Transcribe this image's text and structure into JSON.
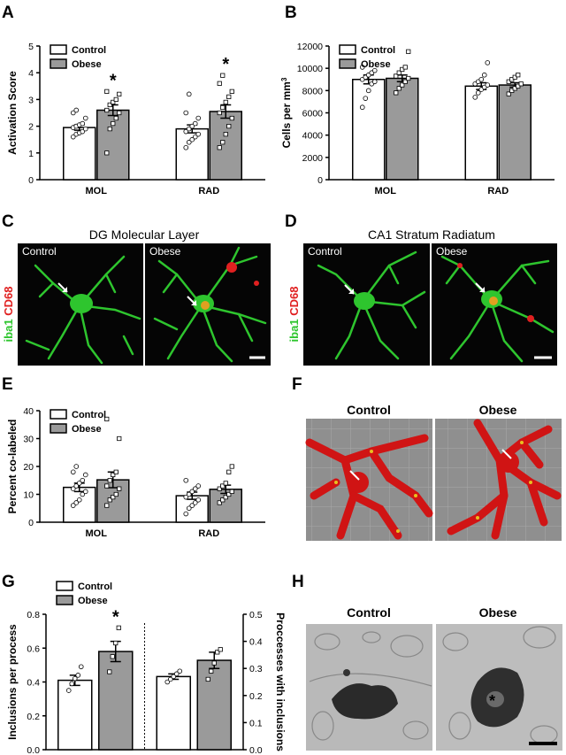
{
  "panels": {
    "A": {
      "letter": "A"
    },
    "B": {
      "letter": "B"
    },
    "C": {
      "letter": "C",
      "title": "DG Molecular Layer",
      "left_label": "Control",
      "right_label": "Obese",
      "stain1": "iba1",
      "stain2": "CD68"
    },
    "D": {
      "letter": "D",
      "title": "CA1 Stratum Radiatum",
      "left_label": "Control",
      "right_label": "Obese",
      "stain1": "iba1",
      "stain2": "CD68"
    },
    "E": {
      "letter": "E"
    },
    "F": {
      "letter": "F",
      "left_label": "Control",
      "right_label": "Obese"
    },
    "G": {
      "letter": "G"
    },
    "H": {
      "letter": "H",
      "left_label": "Control",
      "right_label": "Obese"
    }
  },
  "colors": {
    "control": "#ffffff",
    "obese": "#9a9a9a",
    "green_stain": "#2ec52e",
    "red_stain": "#e02020"
  },
  "chart_data": [
    {
      "id": "A",
      "type": "bar",
      "categories": [
        "MOL",
        "RAD"
      ],
      "ylabel": "Activation Score",
      "ylim": [
        0,
        5
      ],
      "yticks": [
        "0",
        "1",
        "2",
        "3",
        "4",
        "5"
      ],
      "legend": "top-left",
      "series": [
        {
          "name": "Control",
          "values": [
            1.95,
            1.9
          ],
          "errors": [
            0.1,
            0.15
          ],
          "points": [
            [
              1.6,
              1.7,
              1.75,
              1.8,
              1.9,
              1.95,
              2.0,
              2.05,
              2.1,
              2.3,
              2.5,
              2.6
            ],
            [
              1.2,
              1.4,
              1.5,
              1.6,
              1.7,
              1.8,
              1.9,
              2.0,
              2.1,
              2.3,
              2.5,
              3.2
            ]
          ]
        },
        {
          "name": "Obese",
          "values": [
            2.6,
            2.55
          ],
          "errors": [
            0.2,
            0.25
          ],
          "points": [
            [
              1.0,
              1.9,
              2.1,
              2.3,
              2.5,
              2.6,
              2.8,
              2.9,
              3.0,
              3.2,
              3.3
            ],
            [
              1.2,
              1.4,
              1.7,
              2.0,
              2.3,
              2.5,
              2.7,
              2.9,
              3.1,
              3.3,
              3.6,
              3.9
            ]
          ]
        }
      ],
      "sig": [
        {
          "category": "MOL",
          "text": "*"
        },
        {
          "category": "RAD",
          "text": "*"
        }
      ]
    },
    {
      "id": "B",
      "type": "bar",
      "categories": [
        "MOL",
        "RAD"
      ],
      "ylabel": "Cells per mm",
      "ylabel_sup": "3",
      "ylim": [
        0,
        12000
      ],
      "yticks": [
        "0",
        "2000",
        "4000",
        "6000",
        "8000",
        "10000",
        "12000"
      ],
      "legend": "top-left",
      "series": [
        {
          "name": "Control",
          "values": [
            9000,
            8400
          ],
          "errors": [
            400,
            300
          ],
          "points": [
            [
              6500,
              7300,
              8000,
              8600,
              8800,
              9000,
              9200,
              9400,
              9600,
              9800,
              10100
            ],
            [
              7400,
              7800,
              8100,
              8300,
              8500,
              8600,
              8800,
              9000,
              9400,
              10500
            ]
          ]
        },
        {
          "name": "Obese",
          "values": [
            9100,
            8500
          ],
          "errors": [
            300,
            200
          ],
          "points": [
            [
              7800,
              8200,
              8500,
              8800,
              9100,
              9300,
              9600,
              9900,
              10100,
              11500
            ],
            [
              7700,
              8000,
              8200,
              8400,
              8600,
              8800,
              9000,
              9200,
              9400
            ]
          ]
        }
      ]
    },
    {
      "id": "E",
      "type": "bar",
      "categories": [
        "MOL",
        "RAD"
      ],
      "ylabel": "Percent co-labeled",
      "ylim": [
        0,
        40
      ],
      "yticks": [
        "0",
        "10",
        "20",
        "30",
        "40"
      ],
      "legend": "top-left",
      "series": [
        {
          "name": "Control",
          "values": [
            12.5,
            9.5
          ],
          "errors": [
            1.5,
            1.3
          ],
          "points": [
            [
              6,
              7,
              8,
              10,
              11,
              12,
              13,
              14,
              15,
              17,
              18,
              20
            ],
            [
              3,
              5,
              6,
              7,
              8,
              9,
              10,
              11,
              12,
              13,
              15
            ]
          ]
        },
        {
          "name": "Obese",
          "values": [
            15.2,
            11.8
          ],
          "errors": [
            2.8,
            1.5
          ],
          "points": [
            [
              6,
              8,
              9,
              10,
              12,
              13,
              15,
              17,
              18,
              30,
              37
            ],
            [
              7,
              8,
              9,
              10,
              11,
              12,
              13,
              14,
              18,
              20
            ]
          ]
        }
      ]
    },
    {
      "id": "G",
      "type": "bar",
      "left": {
        "categories": [
          ""
        ],
        "ylabel": "Inclusions per process",
        "ylim": [
          0,
          0.8
        ],
        "yticks": [
          "0.0",
          "0.2",
          "0.4",
          "0.6",
          "0.8"
        ],
        "series": [
          {
            "name": "Control",
            "values": [
              0.41
            ],
            "errors": [
              0.03
            ],
            "points": [
              0.35,
              0.39,
              0.42,
              0.44,
              0.49
            ]
          },
          {
            "name": "Obese",
            "values": [
              0.58
            ],
            "errors": [
              0.06
            ],
            "points": [
              0.46,
              0.55,
              0.63,
              0.72
            ]
          }
        ],
        "sig": "*"
      },
      "right": {
        "ylabel": "Proccesses with inclusions",
        "ylim": [
          0,
          0.5
        ],
        "yticks": [
          "0.0",
          "0.1",
          "0.2",
          "0.3",
          "0.4",
          "0.5"
        ],
        "series": [
          {
            "name": "Control",
            "values": [
              0.27
            ],
            "errors": [
              0.01
            ],
            "points": [
              0.25,
              0.26,
              0.27,
              0.28,
              0.29
            ]
          },
          {
            "name": "Obese",
            "values": [
              0.33
            ],
            "errors": [
              0.03
            ],
            "points": [
              0.26,
              0.29,
              0.32,
              0.36,
              0.37
            ]
          }
        ]
      },
      "legend": "top-left"
    }
  ]
}
